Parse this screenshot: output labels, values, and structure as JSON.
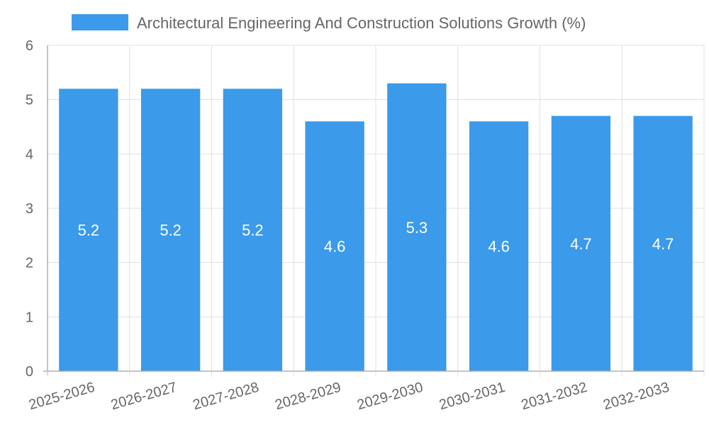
{
  "chart_data": {
    "type": "bar",
    "title": "",
    "xlabel": "",
    "ylabel": "",
    "categories": [
      "2025-2026",
      "2026-2027",
      "2027-2028",
      "2028-2029",
      "2029-2030",
      "2030-2031",
      "2031-2032",
      "2032-2033"
    ],
    "series": [
      {
        "name": "Architectural Engineering And Construction Solutions Growth (%)",
        "values": [
          5.2,
          5.2,
          5.2,
          4.6,
          5.3,
          4.6,
          4.7,
          4.7
        ],
        "color": "#3b9ae9"
      }
    ],
    "ylim": [
      0,
      6
    ],
    "yticks": [
      0,
      1,
      2,
      3,
      4,
      5,
      6
    ],
    "grid": true,
    "legend_position": "top-center",
    "data_labels": [
      "5.2",
      "5.2",
      "5.2",
      "4.6",
      "5.3",
      "4.6",
      "4.7",
      "4.7"
    ]
  }
}
